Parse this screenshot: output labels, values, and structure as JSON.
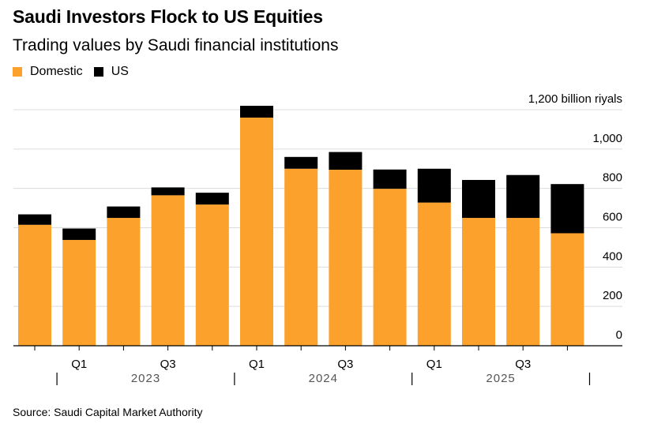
{
  "title": "Saudi Investors Flock to US Equities",
  "subtitle": "Trading values by Saudi financial institutions",
  "source": "Source: Saudi Capital Market Authority",
  "colors": {
    "domestic": "#fca12b",
    "us": "#000000",
    "grid": "#dcdcdc"
  },
  "chart_data": {
    "type": "bar",
    "stacked": true,
    "categories": [
      "Q4 2022",
      "Q1 2023",
      "Q2 2023",
      "Q3 2023",
      "Q4 2023",
      "Q1 2024",
      "Q2 2024",
      "Q3 2024",
      "Q4 2024",
      "Q1 2025",
      "Q2 2025",
      "Q3 2025",
      "Q4 2025"
    ],
    "x_tick_labels": [
      "",
      "Q1",
      "",
      "Q3",
      "",
      "Q1",
      "",
      "Q3",
      "",
      "Q1",
      "",
      "Q3",
      ""
    ],
    "year_labels": [
      {
        "label": "2023",
        "start": 1,
        "end": 4
      },
      {
        "label": "2024",
        "start": 5,
        "end": 8
      },
      {
        "label": "2025",
        "start": 9,
        "end": 12
      }
    ],
    "year_boundaries": [
      0.5,
      4.5,
      8.5,
      12.5
    ],
    "series": [
      {
        "name": "Domestic",
        "values": [
          615,
          538,
          650,
          765,
          718,
          1160,
          900,
          895,
          798,
          728,
          650,
          650,
          572
        ]
      },
      {
        "name": "US",
        "values": [
          53,
          58,
          58,
          40,
          60,
          60,
          60,
          90,
          98,
          172,
          193,
          218,
          250
        ]
      }
    ],
    "y_ticks": [
      0,
      200,
      400,
      600,
      800,
      1000,
      1200
    ],
    "y_tick_labels": [
      "0",
      "200",
      "400",
      "600",
      "800",
      "1,000",
      "1,200 billion riyals"
    ],
    "ylim": [
      0,
      1200
    ],
    "legend_position": "top-left"
  }
}
